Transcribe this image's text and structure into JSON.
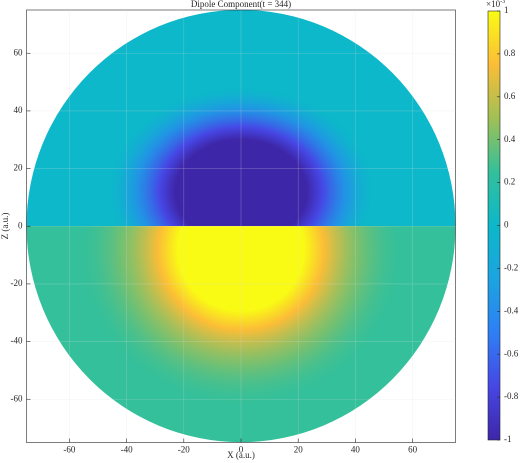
{
  "chart_data": {
    "type": "heatmap",
    "title": "Dipole Component(t = 344)",
    "xlabel": "X (a.u.)",
    "ylabel": "Z (a.u.)",
    "xlim": [
      -75,
      75
    ],
    "ylim": [
      -75,
      75
    ],
    "xticks": [
      -60,
      -40,
      -20,
      0,
      20,
      40,
      60
    ],
    "yticks": [
      -60,
      -40,
      -20,
      0,
      20,
      40,
      60
    ],
    "grid": true,
    "clim": [
      -1,
      1
    ],
    "cticks": [
      -1,
      -0.8,
      -0.6,
      -0.4,
      -0.2,
      0,
      0.2,
      0.4,
      0.6,
      0.8,
      1
    ],
    "colorbar_multiplier": {
      "base": "×10",
      "exponent": "-3"
    },
    "colormap": [
      "#3e26a8",
      "#4647e5",
      "#2e7ff5",
      "#1ba4e1",
      "#0cb8c9",
      "#33c09b",
      "#a0c055",
      "#fbbd37",
      "#f9fb14"
    ]
  }
}
